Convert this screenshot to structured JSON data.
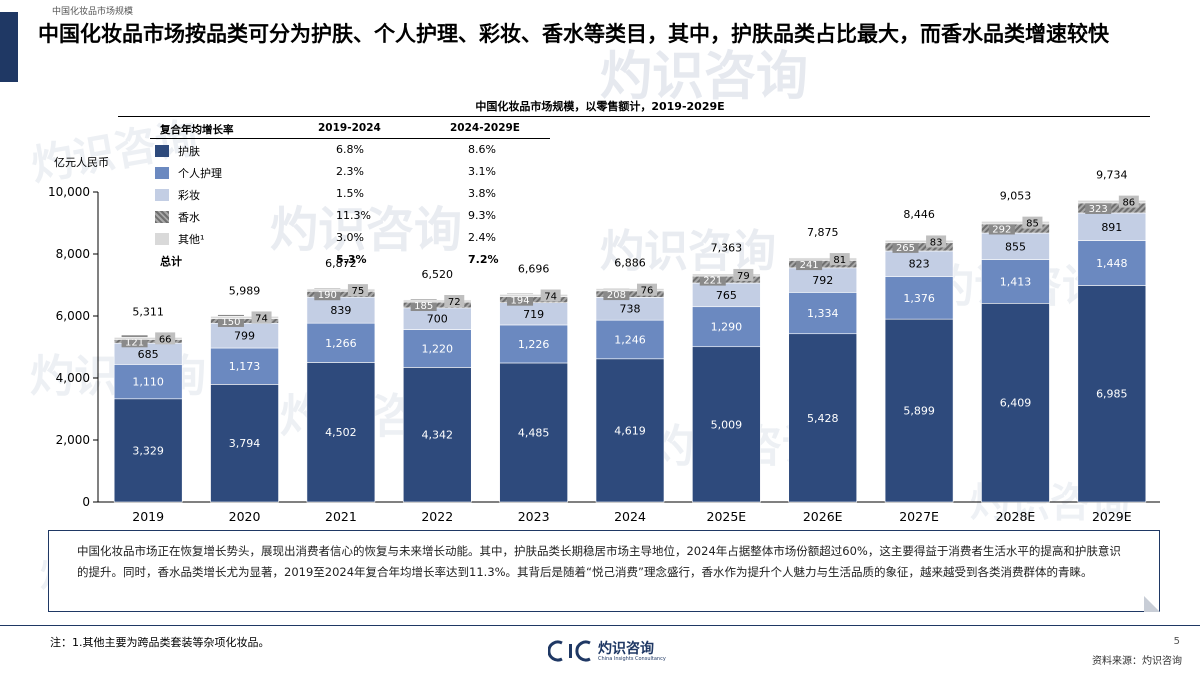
{
  "header": {
    "top_label": "中国化妆品市场规模",
    "title": "中国化妆品市场按品类可分为护肤、个人护理、彩妆、香水等类目，其中，护肤品类占比最大，而香水品类增速较快"
  },
  "watermark": {
    "text_cn": "灼识咨询",
    "text_en": "China Insights Consultancy",
    "brand": "CIC"
  },
  "chart_data": {
    "type": "bar",
    "stacked": true,
    "title": "中国化妆品市场规模，以零售额计，2019-2029E",
    "ylabel": "亿元人民币",
    "ylim": [
      0,
      10000
    ],
    "yticks": [
      "0",
      "2,000",
      "4,000",
      "6,000",
      "8,000",
      "10,000"
    ],
    "categories": [
      "2019",
      "2020",
      "2021",
      "2022",
      "2023",
      "2024",
      "2025E",
      "2026E",
      "2027E",
      "2028E",
      "2029E"
    ],
    "series": [
      {
        "name": "护肤",
        "color": "#2e4a7c",
        "values": [
          3329,
          3794,
          4502,
          4342,
          4485,
          4619,
          5009,
          5428,
          5899,
          6409,
          6985
        ],
        "labels": [
          "3,329",
          "3,794",
          "4,502",
          "4,342",
          "4,485",
          "4,619",
          "5,009",
          "5,428",
          "5,899",
          "6,409",
          "6,985"
        ]
      },
      {
        "name": "个人护理",
        "color": "#6b89c0",
        "values": [
          1110,
          1173,
          1266,
          1220,
          1226,
          1246,
          1290,
          1334,
          1376,
          1413,
          1448
        ],
        "labels": [
          "1,110",
          "1,173",
          "1,266",
          "1,220",
          "1,226",
          "1,246",
          "1,290",
          "1,334",
          "1,376",
          "1,413",
          "1,448"
        ]
      },
      {
        "name": "彩妆",
        "color": "#c3cee4",
        "values": [
          685,
          799,
          839,
          700,
          719,
          738,
          765,
          792,
          823,
          855,
          891
        ],
        "labels": [
          "685",
          "799",
          "839",
          "700",
          "719",
          "738",
          "765",
          "792",
          "823",
          "855",
          "891"
        ]
      },
      {
        "name": "香水",
        "color": "#8a8a8a",
        "pattern": "hatch",
        "values": [
          121,
          150,
          190,
          185,
          194,
          208,
          221,
          241,
          265,
          292,
          323
        ],
        "labels": [
          "121",
          "150",
          "190",
          "185",
          "194",
          "208",
          "221",
          "241",
          "265",
          "292",
          "323"
        ]
      },
      {
        "name": "其他¹",
        "color": "#d9d9d9",
        "values": [
          66,
          74,
          75,
          72,
          74,
          76,
          79,
          81,
          83,
          85,
          86
        ],
        "labels": [
          "66",
          "74",
          "75",
          "72",
          "74",
          "76",
          "79",
          "81",
          "83",
          "85",
          "86"
        ]
      }
    ],
    "totals": [
      5311,
      5989,
      6872,
      6520,
      6696,
      6886,
      7363,
      7875,
      8446,
      9053,
      9734
    ],
    "total_labels": [
      "5,311",
      "5,989",
      "6,872",
      "6,520",
      "6,696",
      "6,886",
      "7,363",
      "7,875",
      "8,446",
      "9,053",
      "9,734"
    ],
    "legend_position": "top-left"
  },
  "cagr_table": {
    "header": "复合年均增长率",
    "col1": "2019-2024",
    "col2": "2024-2029E",
    "rows": [
      {
        "name": "护肤",
        "c1": "6.8%",
        "c2": "8.6%"
      },
      {
        "name": "个人护理",
        "c1": "2.3%",
        "c2": "3.1%"
      },
      {
        "name": "彩妆",
        "c1": "1.5%",
        "c2": "3.8%"
      },
      {
        "name": "香水",
        "c1": "11.3%",
        "c2": "9.3%"
      },
      {
        "name": "其他¹",
        "c1": "3.0%",
        "c2": "2.4%"
      }
    ],
    "total": {
      "name": "总计",
      "c1": "5.3%",
      "c2": "7.2%"
    }
  },
  "commentary": "中国化妆品市场正在恢复增长势头，展现出消费者信心的恢复与未来增长动能。其中，护肤品类长期稳居市场主导地位，2024年占据整体市场份额超过60%，这主要得益于消费者生活水平的提高和护肤意识的提升。同时，香水品类增长尤为显著，2019至2024年复合年均增长率达到11.3%。其背后是随着“悦己消费”理念盛行，香水作为提升个人魅力与生活品质的象征，越来越受到各类消费群体的青睐。",
  "footer": {
    "note": "注：1.其他主要为跨品类套装等杂项化妆品。",
    "logo_cn": "灼识咨询",
    "logo_en": "China Insights Consultancy",
    "page_number": "5",
    "source": "资料来源：灼识咨询"
  }
}
